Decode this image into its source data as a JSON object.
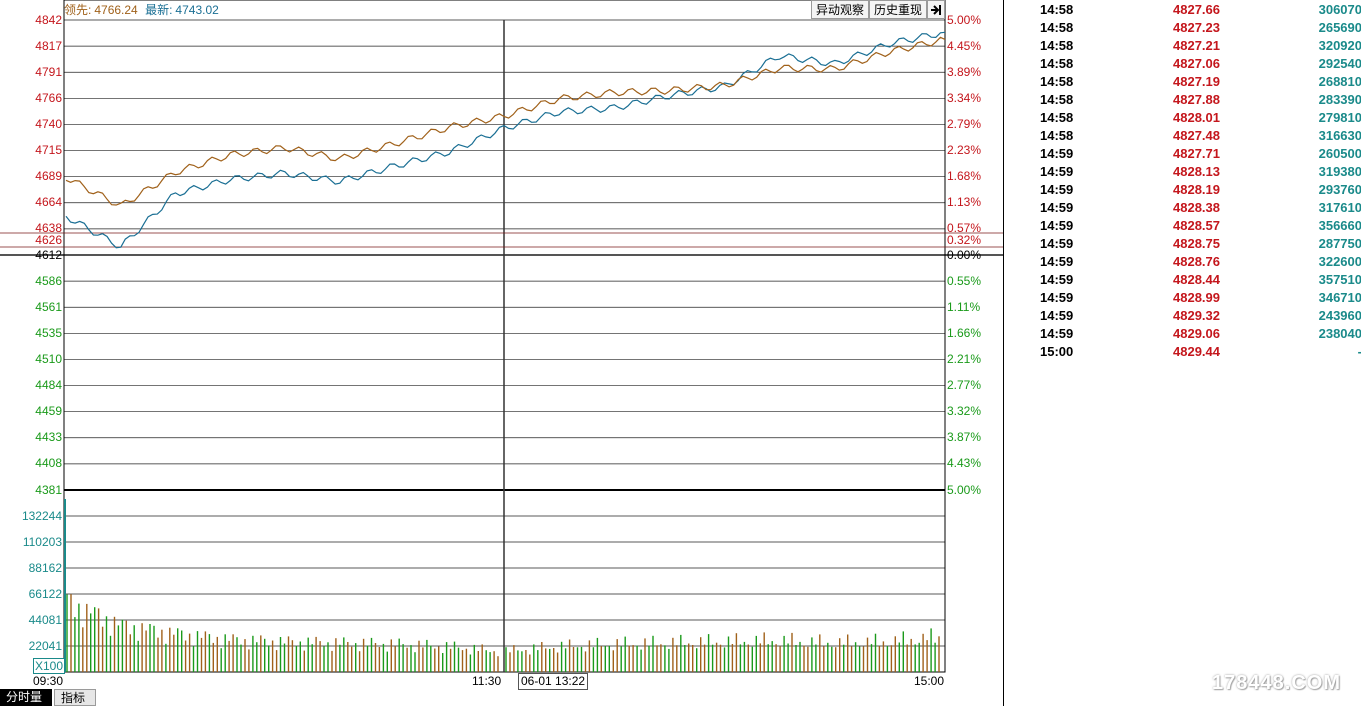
{
  "toolbar": {
    "abnormal_label": "异动观察",
    "history_label": "历史重现",
    "exit_icon": "exit-arrow-icon"
  },
  "legend": {
    "leader_label": "领先:",
    "leader_value": "4766.24",
    "latest_label": "最新:",
    "latest_value": "4743.02"
  },
  "tabs": {
    "timeshare": "分时量",
    "indicator": "指标"
  },
  "scale_label": "X100",
  "crosshair_label": "06-01 13:22",
  "watermark": "178448.COM",
  "colors": {
    "up": "#c4161c",
    "down": "#1a9a1a",
    "latest_line": "#1a6f94",
    "leader_line": "#a0611a",
    "volume_axis": "#1a8a8a"
  },
  "chart_data": [
    {
      "type": "line",
      "title": "",
      "price_ticks": [
        "4842",
        "4817",
        "4791",
        "4766",
        "4740",
        "4715",
        "4689",
        "4664",
        "4638",
        "4626",
        "4612",
        "4586",
        "4561",
        "4535",
        "4510",
        "4484",
        "4459",
        "4433",
        "4408",
        "4381"
      ],
      "pct_ticks": [
        "5.00%",
        "4.45%",
        "3.89%",
        "3.34%",
        "2.79%",
        "2.23%",
        "1.68%",
        "1.13%",
        "0.57%",
        "0.32%",
        "0.00%",
        "0.55%",
        "1.11%",
        "1.66%",
        "2.21%",
        "2.77%",
        "3.32%",
        "3.87%",
        "4.43%",
        "5.00%"
      ],
      "x_labels": [
        "09:30",
        "11:30",
        "15:00"
      ],
      "ylim": [
        4381,
        4842
      ],
      "prev_close": 4612,
      "x": [
        "09:30",
        "09:45",
        "10:00",
        "10:15",
        "10:30",
        "10:45",
        "11:00",
        "11:15",
        "11:30",
        "13:15",
        "13:30",
        "13:45",
        "14:00",
        "14:15",
        "14:30",
        "14:45",
        "15:00"
      ],
      "series": [
        {
          "name": "最新",
          "values": [
            4650,
            4620,
            4672,
            4686,
            4692,
            4684,
            4699,
            4713,
            4736,
            4752,
            4756,
            4768,
            4777,
            4807,
            4799,
            4819,
            4830
          ]
        },
        {
          "name": "领先",
          "values": [
            4688,
            4660,
            4693,
            4710,
            4717,
            4706,
            4721,
            4737,
            4748,
            4765,
            4771,
            4773,
            4778,
            4795,
            4794,
            4811,
            4823
          ]
        }
      ]
    },
    {
      "type": "bar",
      "title": "",
      "volume_ticks": [
        "132244",
        "110203",
        "88162",
        "66122",
        "44081",
        "22041"
      ],
      "ylim": [
        0,
        154285
      ],
      "x": [
        "09:30",
        "09:45",
        "10:00",
        "10:15",
        "10:30",
        "10:45",
        "11:00",
        "11:15",
        "11:30",
        "13:15",
        "13:30",
        "13:45",
        "14:00",
        "14:15",
        "14:30",
        "14:45",
        "15:00"
      ],
      "values": [
        60000,
        40000,
        33000,
        28000,
        26000,
        25000,
        24000,
        22000,
        18000,
        22000,
        24000,
        25000,
        26000,
        27000,
        25000,
        26000,
        30000
      ]
    }
  ],
  "tick_list": [
    {
      "time": "14:58",
      "price": "4827.66",
      "volume": "306070"
    },
    {
      "time": "14:58",
      "price": "4827.23",
      "volume": "265690"
    },
    {
      "time": "14:58",
      "price": "4827.21",
      "volume": "320920"
    },
    {
      "time": "14:58",
      "price": "4827.06",
      "volume": "292540"
    },
    {
      "time": "14:58",
      "price": "4827.19",
      "volume": "268810"
    },
    {
      "time": "14:58",
      "price": "4827.88",
      "volume": "283390"
    },
    {
      "time": "14:58",
      "price": "4828.01",
      "volume": "279810"
    },
    {
      "time": "14:58",
      "price": "4827.48",
      "volume": "316630"
    },
    {
      "time": "14:59",
      "price": "4827.71",
      "volume": "260500"
    },
    {
      "time": "14:59",
      "price": "4828.13",
      "volume": "319380"
    },
    {
      "time": "14:59",
      "price": "4828.19",
      "volume": "293760"
    },
    {
      "time": "14:59",
      "price": "4828.38",
      "volume": "317610"
    },
    {
      "time": "14:59",
      "price": "4828.57",
      "volume": "356660"
    },
    {
      "time": "14:59",
      "price": "4828.75",
      "volume": "287750"
    },
    {
      "time": "14:59",
      "price": "4828.76",
      "volume": "322600"
    },
    {
      "time": "14:59",
      "price": "4828.44",
      "volume": "357510"
    },
    {
      "time": "14:59",
      "price": "4828.99",
      "volume": "346710"
    },
    {
      "time": "14:59",
      "price": "4829.32",
      "volume": "243960"
    },
    {
      "time": "14:59",
      "price": "4829.06",
      "volume": "238040"
    },
    {
      "time": "15:00",
      "price": "4829.44",
      "volume": "-"
    }
  ]
}
